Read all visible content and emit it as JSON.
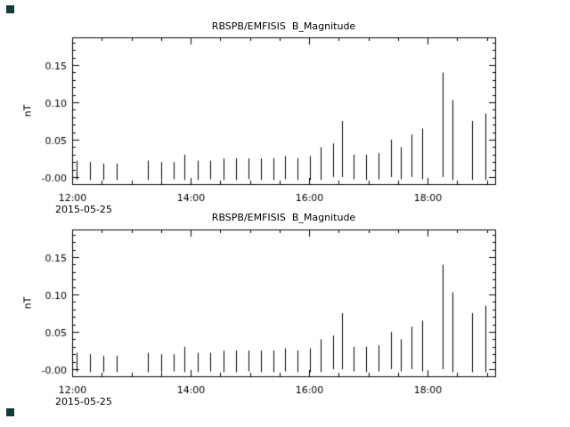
{
  "window": {
    "background": "#ffffff",
    "foreground": "#000000",
    "corner_mark_color": "#123c3c"
  },
  "chart_data": [
    {
      "type": "line-spikes",
      "title": "RBSPB/EMFISIS  B_Magnitude",
      "ylabel": "nT",
      "x_start_date_label": "2015-05-25",
      "xlim": [
        12.0,
        19.14
      ],
      "ylim": [
        -0.0095,
        0.187
      ],
      "xticks": [
        {
          "v": 12,
          "label": "12:00"
        },
        {
          "v": 14,
          "label": "14:00"
        },
        {
          "v": 16,
          "label": "16:00"
        },
        {
          "v": 18,
          "label": "18:00"
        }
      ],
      "xtick_minor_interval": 0.5,
      "yticks": [
        {
          "v": 0.0,
          "label": "-0.00"
        },
        {
          "v": 0.05,
          "label": "0.05"
        },
        {
          "v": 0.1,
          "label": "0.10"
        },
        {
          "v": 0.15,
          "label": "0.15"
        }
      ],
      "ytick_minor_interval": 0.01,
      "points": [
        [
          12.08,
          -0.004,
          0.022
        ],
        [
          12.3,
          -0.004,
          0.02
        ],
        [
          12.52,
          -0.004,
          0.018
        ],
        [
          12.75,
          -0.004,
          0.018
        ],
        [
          13.28,
          -0.004,
          0.022
        ],
        [
          13.5,
          -0.004,
          0.02
        ],
        [
          13.72,
          -0.003,
          0.02
        ],
        [
          13.9,
          -0.004,
          0.03
        ],
        [
          14.12,
          -0.004,
          0.022
        ],
        [
          14.33,
          -0.003,
          0.022
        ],
        [
          14.55,
          -0.004,
          0.025
        ],
        [
          14.76,
          -0.004,
          0.025
        ],
        [
          14.97,
          -0.003,
          0.025
        ],
        [
          15.18,
          -0.004,
          0.025
        ],
        [
          15.4,
          -0.004,
          0.025
        ],
        [
          15.6,
          -0.003,
          0.028
        ],
        [
          15.81,
          -0.004,
          0.025
        ],
        [
          16.02,
          -0.004,
          0.028
        ],
        [
          16.2,
          -0.004,
          0.04
        ],
        [
          16.4,
          0.0,
          0.045
        ],
        [
          16.55,
          0.0,
          0.075
        ],
        [
          16.75,
          -0.003,
          0.03
        ],
        [
          16.96,
          -0.004,
          0.03
        ],
        [
          17.17,
          -0.003,
          0.032
        ],
        [
          17.38,
          0.0,
          0.05
        ],
        [
          17.55,
          -0.003,
          0.04
        ],
        [
          17.72,
          0.0,
          0.057
        ],
        [
          17.9,
          -0.003,
          0.065
        ],
        [
          18.25,
          0.0,
          0.14
        ],
        [
          18.42,
          -0.004,
          0.103
        ],
        [
          18.75,
          -0.004,
          0.075
        ],
        [
          18.98,
          -0.004,
          0.085
        ]
      ]
    },
    {
      "type": "line-spikes",
      "title": "RBSPB/EMFISIS  B_Magnitude",
      "ylabel": "nT",
      "x_start_date_label": "2015-05-25",
      "xlim": [
        12.0,
        19.14
      ],
      "ylim": [
        -0.0095,
        0.187
      ],
      "xticks": [
        {
          "v": 12,
          "label": "12:00"
        },
        {
          "v": 14,
          "label": "14:00"
        },
        {
          "v": 16,
          "label": "16:00"
        },
        {
          "v": 18,
          "label": "18:00"
        }
      ],
      "xtick_minor_interval": 0.5,
      "yticks": [
        {
          "v": 0.0,
          "label": "-0.00"
        },
        {
          "v": 0.05,
          "label": "0.05"
        },
        {
          "v": 0.1,
          "label": "0.10"
        },
        {
          "v": 0.15,
          "label": "0.15"
        }
      ],
      "ytick_minor_interval": 0.01,
      "points": [
        [
          12.08,
          -0.004,
          0.022
        ],
        [
          12.3,
          -0.004,
          0.02
        ],
        [
          12.52,
          -0.004,
          0.018
        ],
        [
          12.75,
          -0.004,
          0.018
        ],
        [
          13.28,
          -0.004,
          0.022
        ],
        [
          13.5,
          -0.004,
          0.02
        ],
        [
          13.72,
          -0.003,
          0.02
        ],
        [
          13.9,
          -0.004,
          0.03
        ],
        [
          14.12,
          -0.004,
          0.022
        ],
        [
          14.33,
          -0.003,
          0.022
        ],
        [
          14.55,
          -0.004,
          0.025
        ],
        [
          14.76,
          -0.004,
          0.025
        ],
        [
          14.97,
          -0.003,
          0.025
        ],
        [
          15.18,
          -0.004,
          0.025
        ],
        [
          15.4,
          -0.004,
          0.025
        ],
        [
          15.6,
          -0.003,
          0.028
        ],
        [
          15.81,
          -0.004,
          0.025
        ],
        [
          16.02,
          -0.004,
          0.028
        ],
        [
          16.2,
          -0.004,
          0.04
        ],
        [
          16.4,
          0.0,
          0.045
        ],
        [
          16.55,
          0.0,
          0.075
        ],
        [
          16.75,
          -0.003,
          0.03
        ],
        [
          16.96,
          -0.004,
          0.03
        ],
        [
          17.17,
          -0.003,
          0.032
        ],
        [
          17.38,
          0.0,
          0.05
        ],
        [
          17.55,
          -0.003,
          0.04
        ],
        [
          17.72,
          0.0,
          0.057
        ],
        [
          17.9,
          -0.003,
          0.065
        ],
        [
          18.25,
          0.0,
          0.14
        ],
        [
          18.42,
          -0.004,
          0.103
        ],
        [
          18.75,
          -0.004,
          0.075
        ],
        [
          18.98,
          -0.004,
          0.085
        ]
      ]
    }
  ]
}
